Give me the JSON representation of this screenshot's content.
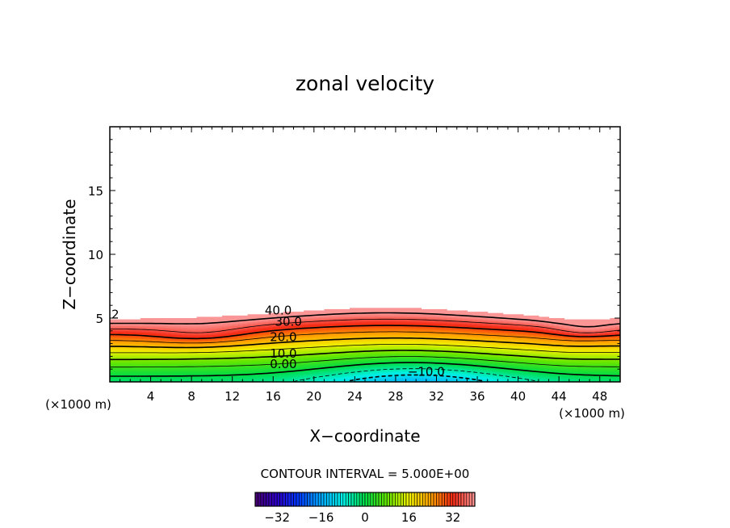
{
  "chart_data": {
    "type": "contour",
    "title": "zonal velocity",
    "xlabel": "X−coordinate",
    "ylabel": "Z−coordinate",
    "x_unit_left": "(×1000 m)",
    "x_unit_right": "(×1000 m)",
    "xlim": [
      0,
      50
    ],
    "ylim": [
      0,
      20
    ],
    "x_ticks": [
      4,
      8,
      12,
      16,
      20,
      24,
      28,
      32,
      36,
      40,
      44,
      48
    ],
    "y_ticks": [
      5,
      10,
      15
    ],
    "contour_interval_label": "CONTOUR INTERVAL = 5.000E+00",
    "contour_labels": [
      {
        "text": "40.0",
        "x": 16.5,
        "z": 5.6
      },
      {
        "text": "30.0",
        "x": 17.5,
        "z": 4.7
      },
      {
        "text": "20.0",
        "x": 17.0,
        "z": 3.5
      },
      {
        "text": "10.0",
        "x": 17.0,
        "z": 2.2
      },
      {
        "text": "0.00",
        "x": 17.0,
        "z": 1.4
      },
      {
        "text": "−10.0",
        "x": 31.0,
        "z": 0.8
      }
    ],
    "edge_label": {
      "text": "2",
      "x": 0.3,
      "z": 5.3
    },
    "contour_levels": [
      -15,
      -10,
      -5,
      0,
      5,
      10,
      15,
      20,
      25,
      30,
      35,
      40,
      45
    ],
    "colorbar": {
      "range": [
        -40,
        40
      ],
      "ticks": [
        -32,
        -16,
        0,
        16,
        32
      ]
    },
    "colors": {
      "background": "#ffffff",
      "axis": "#000000"
    }
  }
}
